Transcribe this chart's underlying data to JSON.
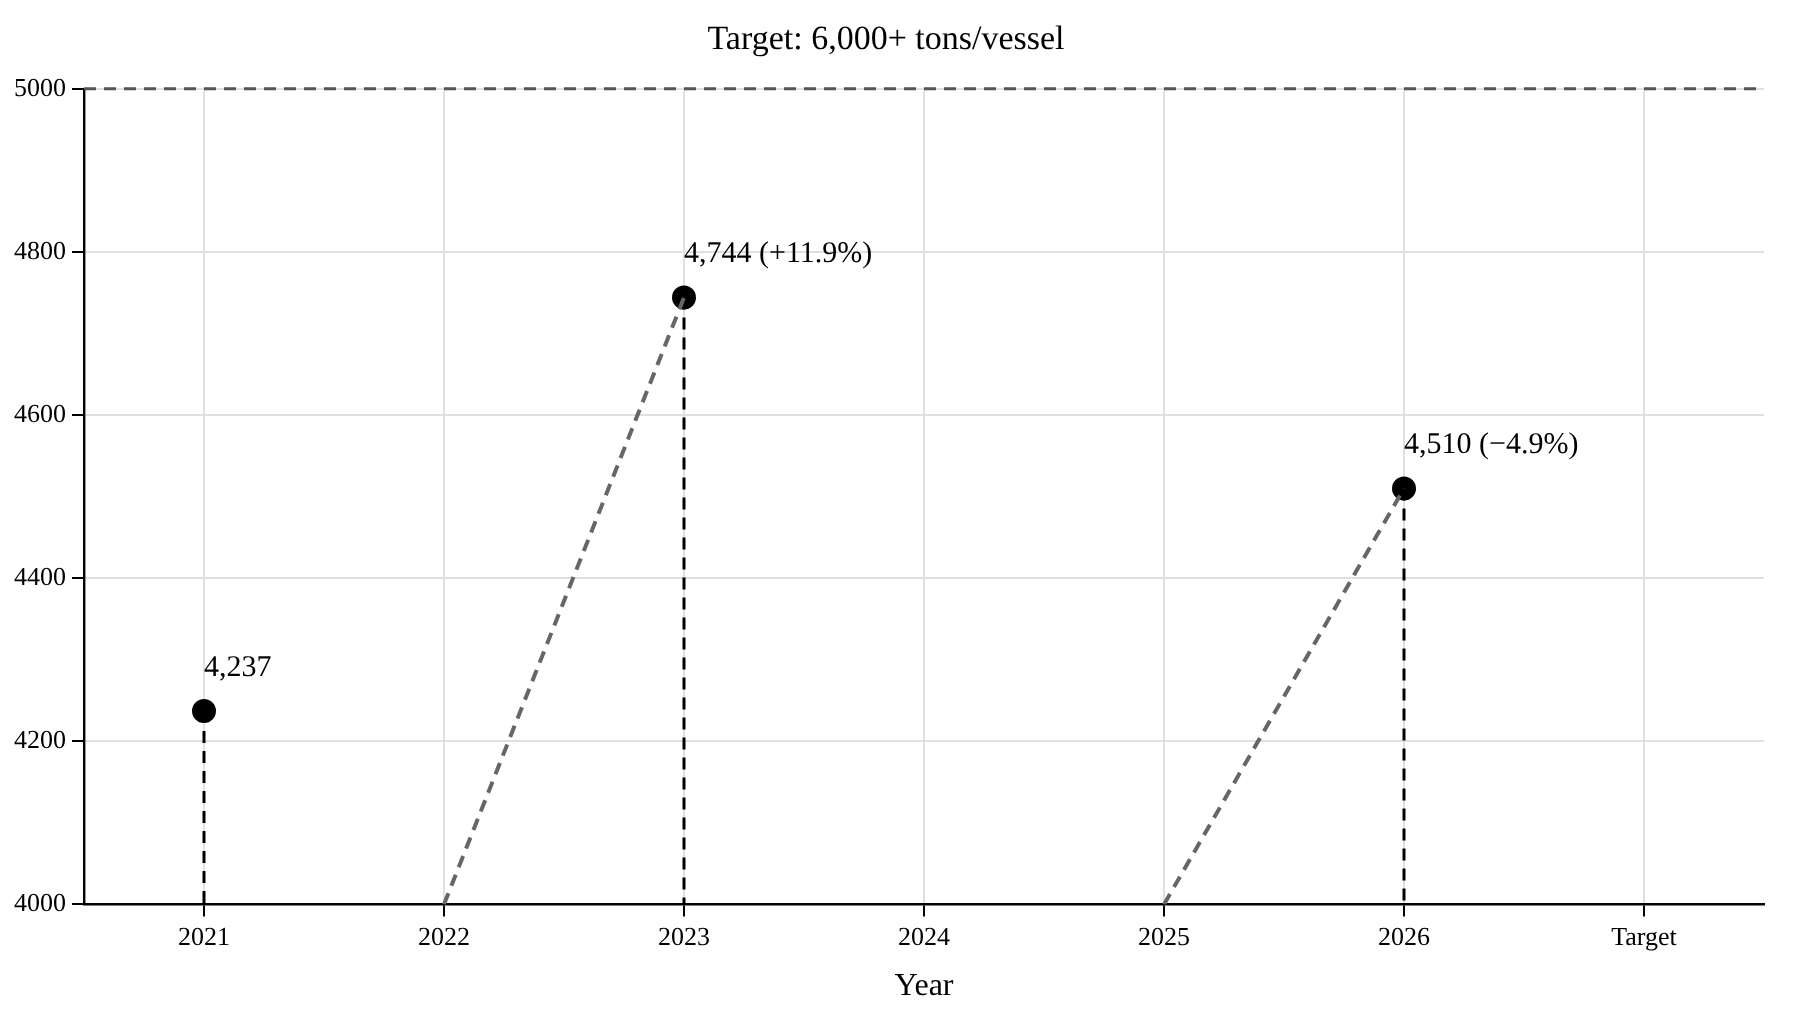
{
  "chart_data": {
    "type": "lollipop",
    "title": "Target: 6,000+ tons/vessel",
    "xlabel": "Year",
    "categories": [
      "2021",
      "2022",
      "2023",
      "2024",
      "2025",
      "2026",
      "Target"
    ],
    "series": [
      {
        "type": "line",
        "color": "#666666",
        "values": [
          null,
          4000,
          4744,
          null,
          4000,
          4510,
          null
        ],
        "marker": "none",
        "line_style": "dashed"
      },
      {
        "type": "lollipop",
        "color": "#000000",
        "values": [
          4237,
          null,
          4744,
          null,
          null,
          4510,
          null
        ],
        "value_labels": [
          "4,237",
          null,
          "4,744 (+11.9%)",
          null,
          null,
          "4,510 (−4.9%)",
          null
        ],
        "marker": "circle",
        "line_style": "dashed"
      }
    ],
    "ylim": [
      4000,
      5000
    ],
    "yticks": [
      4000,
      4200,
      4400,
      4600,
      4800,
      5000
    ],
    "ref_lines": [
      {
        "axis": "y",
        "value": 5000,
        "color": "#555555",
        "line_style": "dashed"
      }
    ],
    "grid": true,
    "legend": false
  }
}
